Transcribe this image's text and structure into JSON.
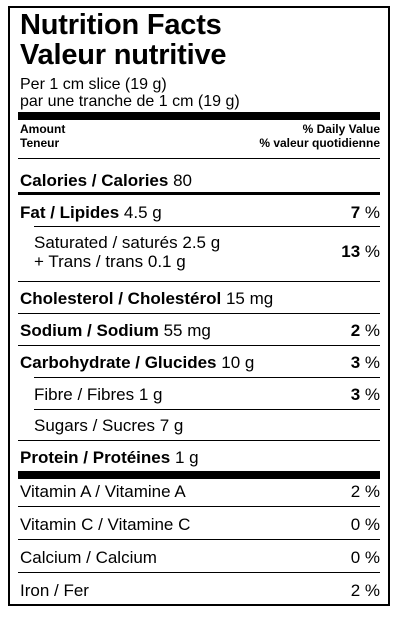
{
  "header": {
    "title_en": "Nutrition Facts",
    "title_fr": "Valeur nutritive",
    "serving_en": "Per 1 cm slice (19 g)",
    "serving_fr": "par une tranche de 1 cm (19 g)"
  },
  "columns": {
    "amount_en": "Amount",
    "amount_fr": "Teneur",
    "dv_en": "% Daily Value",
    "dv_fr": "% valeur quotidienne"
  },
  "calories": {
    "label": "Calories / Calories",
    "value": "80"
  },
  "nutrients": [
    {
      "label": "Fat / Lipides",
      "amount": "4.5 g",
      "dv_num": "7",
      "dv_pct": " %"
    },
    {
      "label": "Saturated / saturés",
      "amount": "2.5 g",
      "label2": "+ Trans / trans",
      "amount2": "0.1 g",
      "dv_num": "13",
      "dv_pct": " %"
    },
    {
      "label": "Cholesterol / Cholestérol",
      "amount": "15 mg"
    },
    {
      "label": "Sodium / Sodium",
      "amount": "55 mg",
      "dv_num": "2",
      "dv_pct": " %"
    },
    {
      "label": "Carbohydrate / Glucides",
      "amount": "10 g",
      "dv_num": "3",
      "dv_pct": " %"
    },
    {
      "label": "Fibre / Fibres",
      "amount": "1 g",
      "dv_num": "3",
      "dv_pct": " %"
    },
    {
      "label": "Sugars / Sucres",
      "amount": "7 g"
    },
    {
      "label": "Protein / Protéines",
      "amount": "1 g"
    }
  ],
  "vitamins": [
    {
      "label": "Vitamin A / Vitamine A",
      "dv": "2 %"
    },
    {
      "label": "Vitamin C / Vitamine C",
      "dv": "0 %"
    },
    {
      "label": "Calcium / Calcium",
      "dv": "0 %"
    },
    {
      "label": "Iron / Fer",
      "dv": "2 %"
    }
  ]
}
